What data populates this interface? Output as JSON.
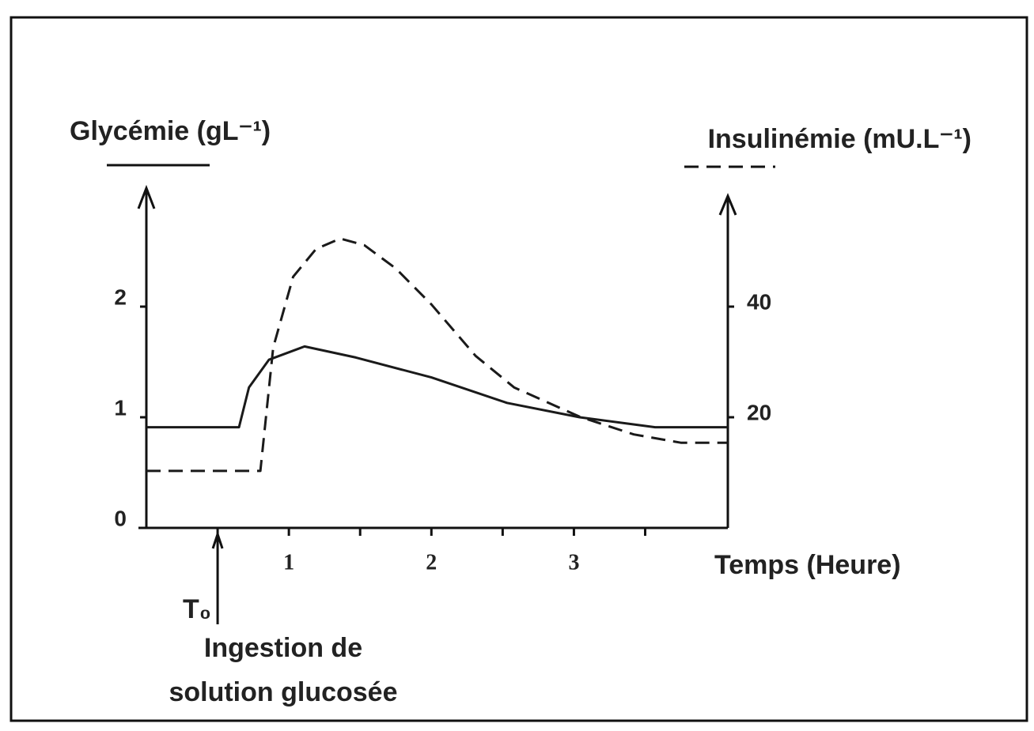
{
  "chart_data": {
    "type": "line",
    "xlabel": "Temps (Heure)",
    "xlim": [
      0,
      4.08
    ],
    "xticks": [
      1,
      2,
      3
    ],
    "minor_xticks": [
      0.5,
      1.5,
      2.5,
      3.5
    ],
    "ylim": [
      0,
      3
    ],
    "yticks": [
      0,
      1,
      2
    ],
    "y2lim": [
      0,
      60
    ],
    "y2ticks": [
      20,
      40
    ],
    "annotation": {
      "label": "T₀",
      "text": [
        "Ingestion de",
        "solution glucosée"
      ],
      "x": 0.5
    },
    "series": [
      {
        "name": "Glycémie (gL⁻¹)",
        "color": "#1a1a1a",
        "style": "solid",
        "x": [
          0,
          0.65,
          0.72,
          0.86,
          1.11,
          1.47,
          2,
          2.53,
          3.04,
          3.57,
          4.08
        ],
        "values": [
          0.91,
          0.91,
          1.27,
          1.52,
          1.64,
          1.54,
          1.36,
          1.13,
          1.0,
          0.91,
          0.91
        ]
      },
      {
        "name": "Insulinémie (mU.L⁻¹)",
        "color": "#1a1a1a",
        "style": "dashed",
        "axis": "y2",
        "x": [
          0,
          0.8,
          0.89,
          1.03,
          1.19,
          1.36,
          1.53,
          1.75,
          2,
          2.31,
          2.58,
          3.04,
          3.42,
          3.75,
          4.08
        ],
        "values": [
          10.3,
          10.3,
          32.6,
          45.4,
          50.4,
          52.3,
          51.1,
          46.9,
          40.4,
          31.1,
          25.4,
          20.1,
          16.9,
          15.4,
          15.4
        ]
      }
    ]
  }
}
